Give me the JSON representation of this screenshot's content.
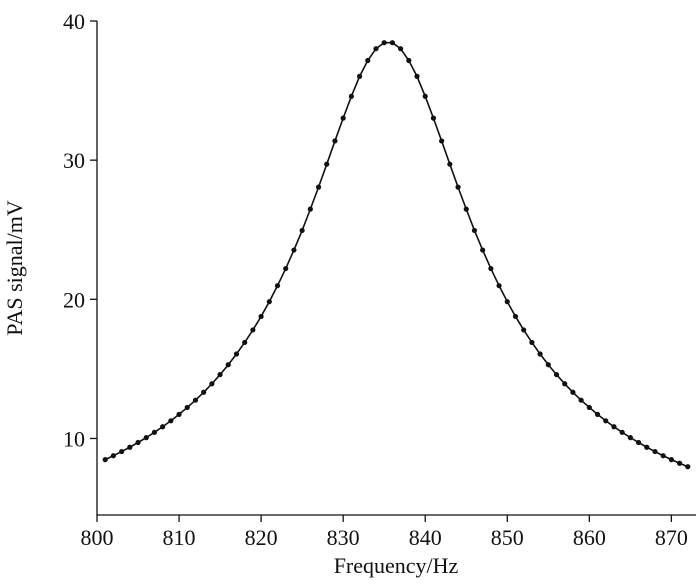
{
  "chart_data": {
    "type": "line",
    "x_label": "Frequency/Hz",
    "y_label": "PAS signal/mV",
    "x": [
      801,
      802,
      803,
      804,
      805,
      806,
      807,
      808,
      809,
      810,
      811,
      812,
      813,
      814,
      815,
      816,
      817,
      818,
      819,
      820,
      821,
      822,
      823,
      824,
      825,
      826,
      827,
      828,
      829,
      830,
      831,
      832,
      833,
      834,
      835,
      836,
      837,
      838,
      839,
      840,
      841,
      842,
      843,
      844,
      845,
      846,
      847,
      848,
      849,
      850,
      851,
      852,
      853,
      854,
      855,
      856,
      857,
      858,
      859,
      860,
      861,
      862,
      863,
      864,
      865,
      866,
      867,
      868,
      869,
      870,
      871,
      872
    ],
    "series": [
      {
        "color": "#111111",
        "values": [
          8.48,
          8.76,
          9.06,
          9.37,
          9.71,
          10.06,
          10.44,
          10.84,
          11.27,
          11.73,
          12.23,
          12.75,
          13.32,
          13.93,
          14.59,
          15.3,
          16.07,
          16.9,
          17.8,
          18.77,
          19.83,
          20.98,
          22.21,
          23.54,
          24.95,
          26.48,
          28.06,
          29.71,
          31.38,
          33.02,
          34.59,
          36.02,
          37.16,
          38.01,
          38.44,
          38.44,
          38.01,
          37.16,
          36.02,
          34.59,
          33.02,
          31.38,
          29.71,
          28.06,
          26.48,
          24.95,
          23.54,
          22.21,
          20.98,
          19.83,
          18.77,
          17.8,
          16.9,
          16.07,
          15.3,
          14.59,
          13.93,
          13.32,
          12.75,
          12.23,
          11.73,
          11.27,
          10.84,
          10.44,
          10.06,
          9.71,
          9.37,
          9.06,
          8.76,
          8.48,
          8.22,
          7.97
        ]
      }
    ],
    "xlim": [
      800,
      873
    ],
    "xticks": [
      800,
      810,
      820,
      830,
      840,
      850,
      860,
      870
    ],
    "ylim": [
      4.5,
      40
    ],
    "yticks": [
      10,
      20,
      30,
      40
    ],
    "markers": true,
    "grid": false
  }
}
